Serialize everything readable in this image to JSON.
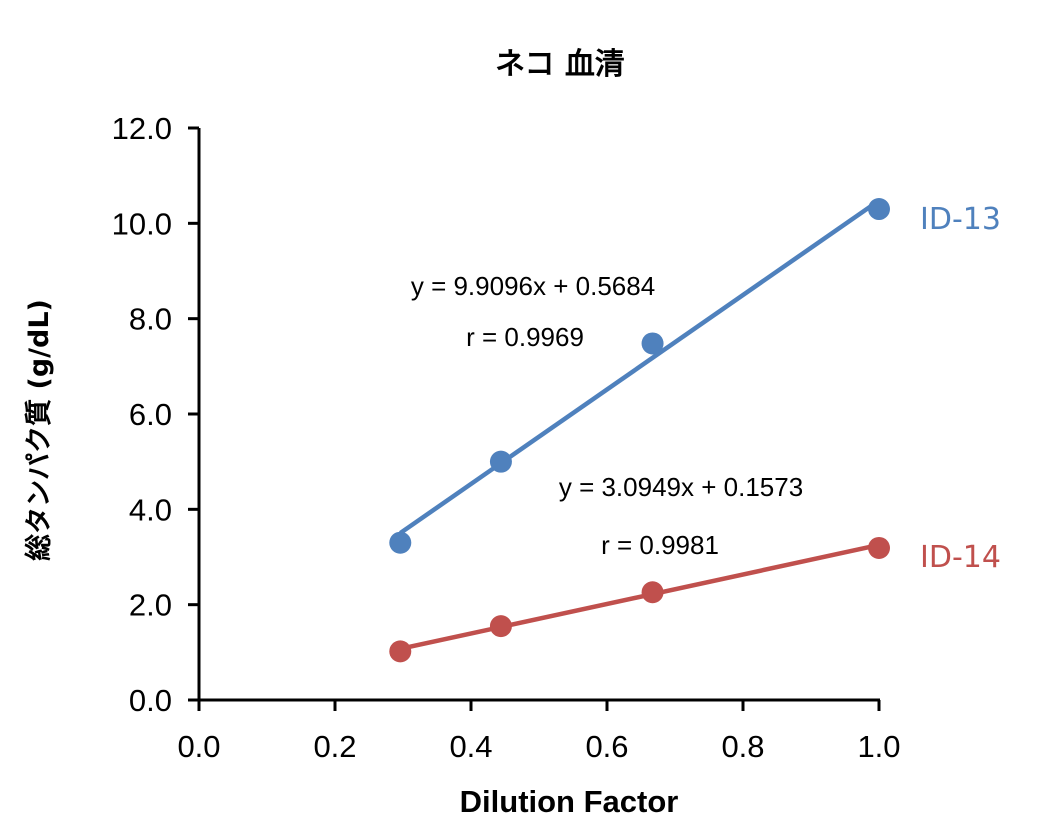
{
  "chart_data": {
    "type": "scatter",
    "title": "ネコ 血清",
    "xlabel": "Dilution Factor",
    "ylabel": "総タンパク質 (g/dL)",
    "xlim": [
      0.0,
      1.0
    ],
    "ylim": [
      0.0,
      12.0
    ],
    "x_ticks": [
      "0.0",
      "0.2",
      "0.4",
      "0.6",
      "0.8",
      "1.0"
    ],
    "y_ticks": [
      "0.0",
      "2.0",
      "4.0",
      "6.0",
      "8.0",
      "10.0",
      "12.0"
    ],
    "grid": false,
    "legend": "none (direct labels at right end of series)",
    "series": [
      {
        "name": "ID-13",
        "color": "#4F81BD",
        "x": [
          0.296,
          0.444,
          0.667,
          1.0
        ],
        "y": [
          3.3,
          5.0,
          7.48,
          10.3
        ],
        "trendline": {
          "slope": 9.9096,
          "intercept": 0.5684
        },
        "equation": "y = 9.9096x + 0.5684",
        "r_label": "r = 0.9969"
      },
      {
        "name": "ID-14",
        "color": "#C0504D",
        "x": [
          0.296,
          0.444,
          0.667,
          1.0
        ],
        "y": [
          1.02,
          1.55,
          2.26,
          3.19
        ],
        "trendline": {
          "slope": 3.0949,
          "intercept": 0.1573
        },
        "equation": "y = 3.0949x + 0.1573",
        "r_label": "r = 0.9981"
      }
    ]
  }
}
